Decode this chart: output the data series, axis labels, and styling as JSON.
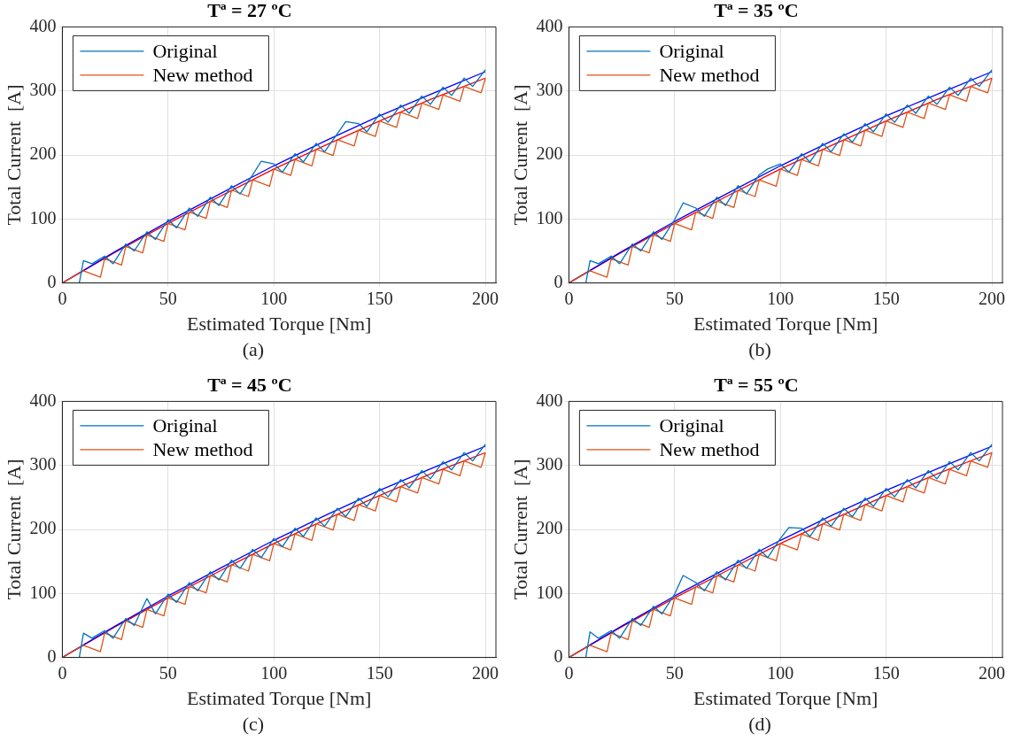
{
  "chart_data": [
    {
      "type": "line",
      "title": "Tª = 27 ºC",
      "xlabel": "Estimated Torque [Nm]",
      "ylabel": "Total Current  [A]",
      "annotations": [
        "(a)"
      ],
      "xlim": [
        0,
        205
      ],
      "ylim": [
        0,
        400
      ],
      "xticks": [
        0,
        50,
        100,
        150,
        200
      ],
      "yticks": [
        0,
        100,
        200,
        300,
        400
      ],
      "grid": true,
      "legend": "top left",
      "marker": "none",
      "line_style": "solid",
      "series": [
        {
          "name": "Original",
          "color": "#0072bd",
          "x": [
            8,
            10,
            14,
            20,
            24,
            30,
            34,
            40,
            44,
            50,
            54,
            60,
            64,
            70,
            74,
            80,
            84,
            90,
            94,
            100,
            104,
            110,
            114,
            120,
            124,
            130,
            134,
            140,
            144,
            150,
            154,
            160,
            164,
            170,
            174,
            180,
            184,
            190,
            194,
            200
          ],
          "values": [
            0,
            35,
            30,
            42,
            30,
            61,
            50,
            80,
            68,
            99,
            86,
            117,
            104,
            134,
            121,
            152,
            139,
            169,
            190,
            186,
            173,
            202,
            189,
            218,
            205,
            233,
            252,
            249,
            236,
            264,
            251,
            278,
            265,
            292,
            279,
            306,
            293,
            320,
            307,
            333
          ]
        },
        {
          "name": "New method",
          "color": "#d95319",
          "x": [
            0,
            10,
            18,
            20,
            28,
            30,
            38,
            40,
            48,
            50,
            58,
            60,
            68,
            70,
            78,
            80,
            88,
            90,
            98,
            100,
            108,
            110,
            118,
            120,
            128,
            130,
            138,
            140,
            148,
            150,
            158,
            160,
            168,
            170,
            178,
            180,
            188,
            190,
            198,
            200
          ],
          "values": [
            0,
            19,
            9,
            38,
            28,
            57,
            47,
            75,
            65,
            93,
            83,
            111,
            101,
            128,
            118,
            145,
            135,
            161,
            151,
            178,
            168,
            193,
            183,
            209,
            199,
            224,
            214,
            239,
            229,
            253,
            243,
            267,
            257,
            281,
            271,
            294,
            284,
            307,
            297,
            320
          ]
        },
        {
          "color": "#0000ff",
          "x": [
            0,
            25,
            50,
            75,
            100,
            125,
            150,
            175,
            200
          ],
          "values": [
            0,
            49,
            96,
            140,
            183,
            223,
            261,
            296,
            330
          ]
        },
        {
          "color": "#ff0000",
          "x": [
            0,
            25,
            50,
            75,
            100,
            125,
            150,
            175,
            200
          ],
          "values": [
            0,
            48,
            93,
            136,
            178,
            216,
            253,
            288,
            320
          ]
        }
      ]
    },
    {
      "type": "line",
      "title": "Tª = 35 ºC",
      "xlabel": "Estimated Torque [Nm]",
      "ylabel": "Total Current  [A]",
      "annotations": [
        "(b)"
      ],
      "xlim": [
        0,
        205
      ],
      "ylim": [
        0,
        400
      ],
      "xticks": [
        0,
        50,
        100,
        150,
        200
      ],
      "yticks": [
        0,
        100,
        200,
        300,
        400
      ],
      "grid": true,
      "legend": "top left",
      "marker": "none",
      "line_style": "solid",
      "series": [
        {
          "name": "Original",
          "color": "#0072bd",
          "x": [
            8,
            10,
            14,
            20,
            24,
            30,
            34,
            40,
            44,
            50,
            54,
            60,
            64,
            70,
            74,
            80,
            84,
            90,
            94,
            100,
            104,
            110,
            114,
            120,
            124,
            130,
            134,
            140,
            144,
            150,
            154,
            160,
            164,
            170,
            174,
            180,
            184,
            190,
            194,
            200
          ],
          "values": [
            0,
            35,
            30,
            42,
            30,
            61,
            50,
            80,
            68,
            99,
            125,
            117,
            104,
            134,
            121,
            152,
            139,
            169,
            178,
            186,
            173,
            202,
            189,
            218,
            205,
            233,
            220,
            249,
            236,
            264,
            251,
            278,
            265,
            292,
            279,
            306,
            293,
            320,
            307,
            333
          ]
        },
        {
          "name": "New method",
          "color": "#d95319",
          "x": [
            0,
            10,
            18,
            20,
            28,
            30,
            38,
            40,
            48,
            50,
            58,
            60,
            68,
            70,
            78,
            80,
            88,
            90,
            98,
            100,
            108,
            110,
            118,
            120,
            128,
            130,
            138,
            140,
            148,
            150,
            158,
            160,
            168,
            170,
            178,
            180,
            188,
            190,
            198,
            200
          ],
          "values": [
            0,
            19,
            9,
            38,
            28,
            57,
            47,
            75,
            65,
            93,
            83,
            111,
            101,
            128,
            118,
            145,
            135,
            161,
            151,
            178,
            168,
            193,
            183,
            209,
            199,
            224,
            214,
            239,
            229,
            253,
            243,
            267,
            257,
            281,
            271,
            294,
            284,
            307,
            297,
            320
          ]
        },
        {
          "color": "#0000ff",
          "x": [
            0,
            25,
            50,
            75,
            100,
            125,
            150,
            175,
            200
          ],
          "values": [
            0,
            49,
            96,
            140,
            183,
            223,
            261,
            296,
            330
          ]
        },
        {
          "color": "#ff0000",
          "x": [
            0,
            25,
            50,
            75,
            100,
            125,
            150,
            175,
            200
          ],
          "values": [
            0,
            48,
            93,
            136,
            178,
            216,
            253,
            288,
            320
          ]
        }
      ]
    },
    {
      "type": "line",
      "title": "Tª = 45 ºC",
      "xlabel": "Estimated Torque [Nm]",
      "ylabel": "Total Current  [A]",
      "annotations": [
        "(c)"
      ],
      "xlim": [
        0,
        205
      ],
      "ylim": [
        0,
        400
      ],
      "xticks": [
        0,
        50,
        100,
        150,
        200
      ],
      "yticks": [
        0,
        100,
        200,
        300,
        400
      ],
      "grid": true,
      "legend": "top left",
      "marker": "none",
      "line_style": "solid",
      "series": [
        {
          "name": "Original",
          "color": "#0072bd",
          "x": [
            8,
            10,
            14,
            20,
            24,
            30,
            34,
            40,
            44,
            50,
            54,
            60,
            64,
            70,
            74,
            80,
            84,
            90,
            94,
            100,
            104,
            110,
            114,
            120,
            124,
            130,
            134,
            140,
            144,
            150,
            154,
            160,
            164,
            170,
            174,
            180,
            184,
            190,
            194,
            200
          ],
          "values": [
            0,
            38,
            30,
            42,
            30,
            61,
            50,
            92,
            68,
            99,
            86,
            117,
            104,
            134,
            121,
            152,
            139,
            169,
            156,
            186,
            173,
            202,
            189,
            218,
            205,
            233,
            220,
            249,
            236,
            264,
            251,
            278,
            265,
            292,
            279,
            306,
            293,
            320,
            307,
            333
          ]
        },
        {
          "name": "New method",
          "color": "#d95319",
          "x": [
            0,
            10,
            18,
            20,
            28,
            30,
            38,
            40,
            48,
            50,
            58,
            60,
            68,
            70,
            78,
            80,
            88,
            90,
            98,
            100,
            108,
            110,
            118,
            120,
            128,
            130,
            138,
            140,
            148,
            150,
            158,
            160,
            168,
            170,
            178,
            180,
            188,
            190,
            198,
            200
          ],
          "values": [
            0,
            19,
            9,
            38,
            28,
            57,
            47,
            75,
            65,
            93,
            83,
            111,
            101,
            128,
            118,
            145,
            135,
            161,
            151,
            178,
            168,
            193,
            183,
            209,
            199,
            224,
            214,
            239,
            229,
            253,
            243,
            267,
            257,
            281,
            271,
            294,
            284,
            307,
            297,
            320
          ]
        },
        {
          "color": "#0000ff",
          "x": [
            0,
            25,
            50,
            75,
            100,
            125,
            150,
            175,
            200
          ],
          "values": [
            0,
            49,
            96,
            140,
            183,
            223,
            261,
            296,
            330
          ]
        },
        {
          "color": "#ff0000",
          "x": [
            0,
            25,
            50,
            75,
            100,
            125,
            150,
            175,
            200
          ],
          "values": [
            0,
            48,
            93,
            136,
            178,
            216,
            253,
            288,
            320
          ]
        }
      ]
    },
    {
      "type": "line",
      "title": "Tª = 55 ºC",
      "xlabel": "Estimated Torque [Nm]",
      "ylabel": "Total Current  [A]",
      "annotations": [
        "(d)"
      ],
      "xlim": [
        0,
        205
      ],
      "ylim": [
        0,
        400
      ],
      "xticks": [
        0,
        50,
        100,
        150,
        200
      ],
      "yticks": [
        0,
        100,
        200,
        300,
        400
      ],
      "grid": true,
      "legend": "top left",
      "marker": "none",
      "line_style": "solid",
      "series": [
        {
          "name": "Original",
          "color": "#0072bd",
          "x": [
            8,
            10,
            14,
            20,
            24,
            30,
            34,
            40,
            44,
            50,
            54,
            60,
            64,
            70,
            74,
            80,
            84,
            90,
            94,
            100,
            104,
            110,
            114,
            120,
            124,
            130,
            134,
            140,
            144,
            150,
            154,
            160,
            164,
            170,
            174,
            180,
            184,
            190,
            194,
            200
          ],
          "values": [
            0,
            40,
            30,
            42,
            30,
            61,
            50,
            80,
            68,
            99,
            128,
            117,
            104,
            134,
            121,
            152,
            139,
            169,
            156,
            186,
            203,
            202,
            189,
            218,
            205,
            233,
            220,
            249,
            236,
            264,
            251,
            278,
            265,
            292,
            279,
            306,
            293,
            320,
            307,
            333
          ]
        },
        {
          "name": "New method",
          "color": "#d95319",
          "x": [
            0,
            10,
            18,
            20,
            28,
            30,
            38,
            40,
            48,
            50,
            58,
            60,
            68,
            70,
            78,
            80,
            88,
            90,
            98,
            100,
            108,
            110,
            118,
            120,
            128,
            130,
            138,
            140,
            148,
            150,
            158,
            160,
            168,
            170,
            178,
            180,
            188,
            190,
            198,
            200
          ],
          "values": [
            0,
            19,
            9,
            38,
            28,
            57,
            47,
            75,
            65,
            93,
            83,
            111,
            101,
            128,
            118,
            145,
            135,
            161,
            151,
            178,
            168,
            193,
            183,
            209,
            199,
            224,
            214,
            239,
            229,
            253,
            243,
            267,
            257,
            281,
            271,
            294,
            284,
            307,
            297,
            320
          ]
        },
        {
          "color": "#0000ff",
          "x": [
            0,
            25,
            50,
            75,
            100,
            125,
            150,
            175,
            200
          ],
          "values": [
            0,
            49,
            96,
            140,
            183,
            223,
            261,
            296,
            330
          ]
        },
        {
          "color": "#ff0000",
          "x": [
            0,
            25,
            50,
            75,
            100,
            125,
            150,
            175,
            200
          ],
          "values": [
            0,
            48,
            93,
            136,
            178,
            216,
            253,
            288,
            320
          ]
        }
      ]
    }
  ]
}
